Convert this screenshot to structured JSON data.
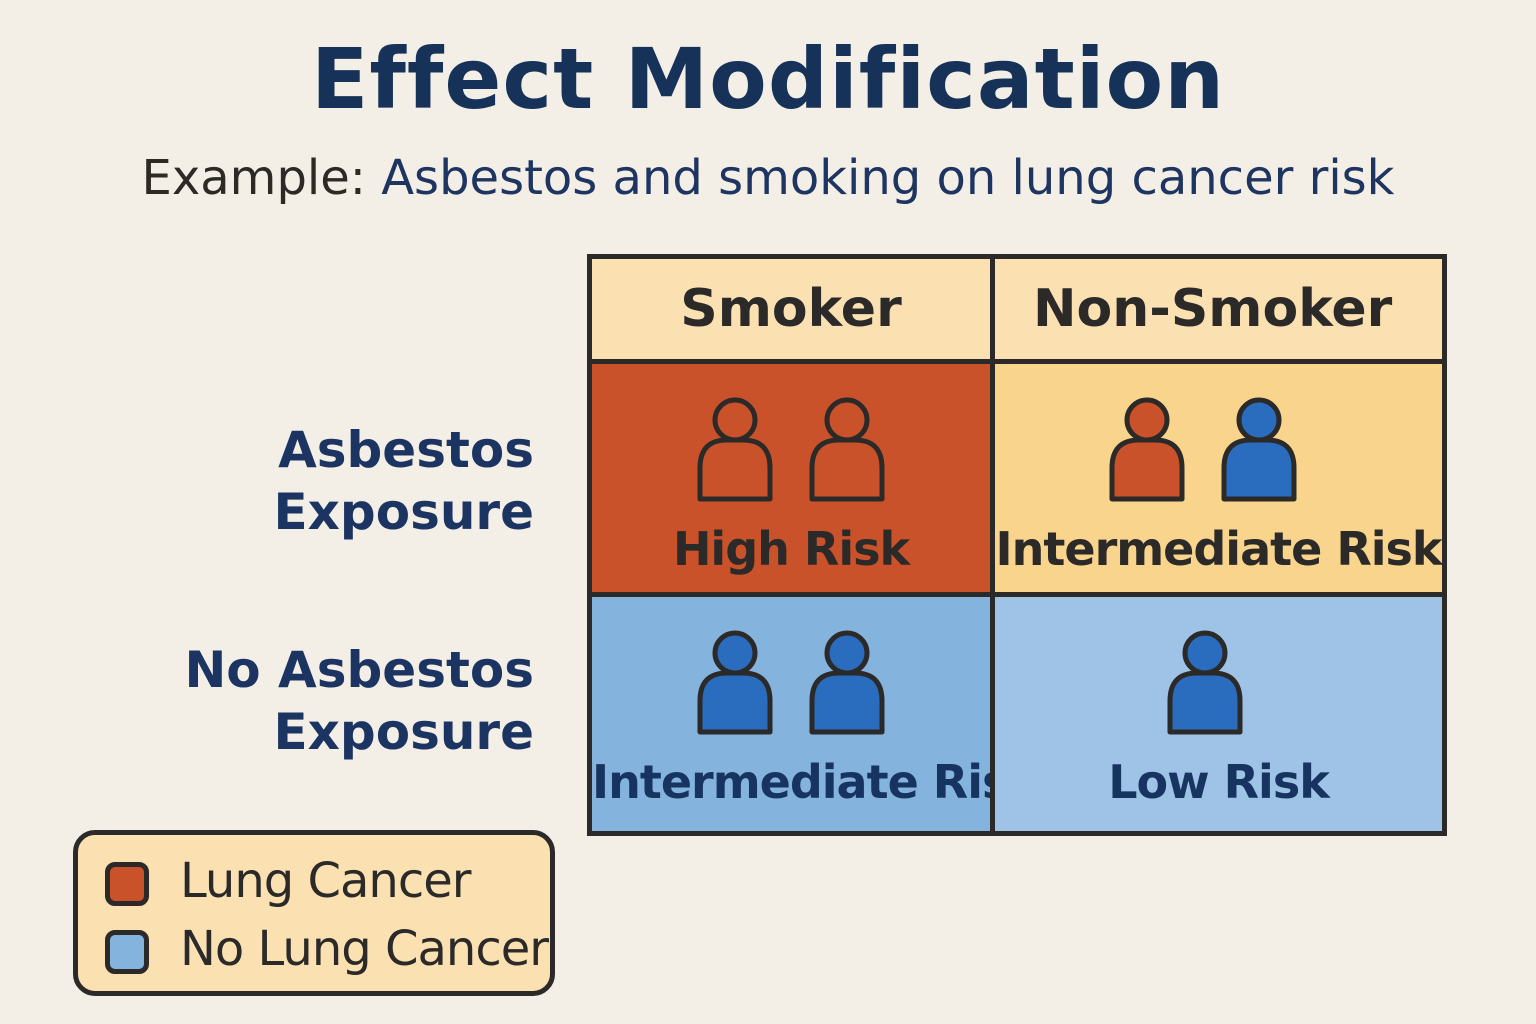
{
  "title": "Effect Modification",
  "subtitle": {
    "prefix": "Example:",
    "text": "Asbestos and smoking on lung cancer risk"
  },
  "columns": [
    "Smoker",
    "Non-Smoker"
  ],
  "rows": [
    {
      "label_line1": "Asbestos",
      "label_line2": "Exposure"
    },
    {
      "label_line1": "No Asbestos",
      "label_line2": "Exposure"
    }
  ],
  "cells": [
    {
      "label": "High Risk",
      "people": [
        "lung-cancer",
        "lung-cancer"
      ],
      "people_style": "outline"
    },
    {
      "label": "Intermediate Risk",
      "people": [
        "lung-cancer",
        "no-lung-cancer"
      ],
      "people_style": "filled"
    },
    {
      "label": "Intermediate Risk",
      "people": [
        "no-lung-cancer",
        "no-lung-cancer"
      ],
      "people_style": "filled"
    },
    {
      "label": "Low Risk",
      "people": [
        "no-lung-cancer"
      ],
      "people_style": "filled"
    }
  ],
  "legend": [
    {
      "label": "Lung Cancer",
      "color": "#c9522a"
    },
    {
      "label": "No Lung Cancer",
      "color": "#84b3de"
    }
  ],
  "colors": {
    "cancer_person": "#c9522a",
    "no_cancer_person": "#2a6cbd",
    "outline": "#2b2a28",
    "high_risk_cell": "#c9522a",
    "intermediate_risk_cell_asbestos": "#f8d48c",
    "intermediate_risk_cell_no_asbestos": "#84b3de",
    "low_risk_cell": "#9fc3e6",
    "header_fill": "#fbe1b2"
  }
}
